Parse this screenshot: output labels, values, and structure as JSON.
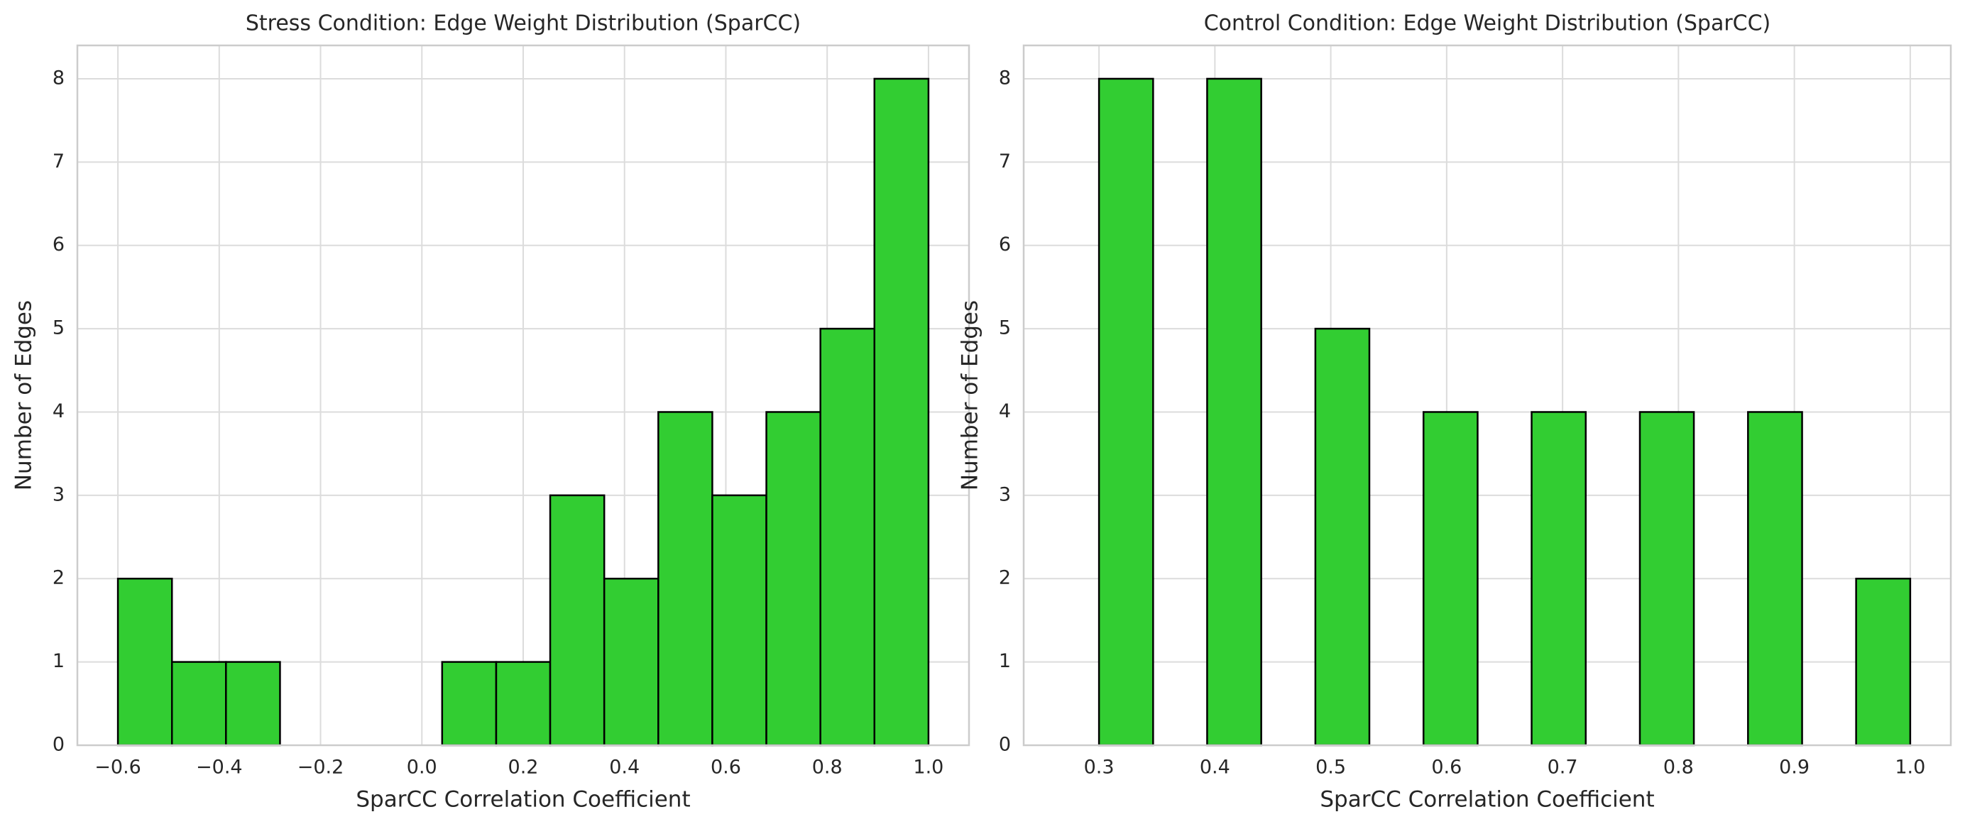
{
  "chart_data": [
    {
      "type": "histogram",
      "title": "Stress Condition: Edge Weight Distribution (SparCC)",
      "x_label": "SparCC Correlation Coefficient",
      "y_label": "Number of Edges",
      "bins": [
        -0.6,
        -0.4933,
        -0.3867,
        -0.28,
        -0.1733,
        -0.0667,
        0.04,
        0.1467,
        0.2533,
        0.36,
        0.4667,
        0.5733,
        0.68,
        0.7867,
        0.8933,
        1.0
      ],
      "values": [
        2,
        1,
        1,
        0,
        0,
        0,
        1,
        1,
        3,
        2,
        4,
        3,
        4,
        5,
        8
      ],
      "color": "#32cd32",
      "edgecolor": "#000000",
      "xlim": [
        -0.68,
        1.08
      ],
      "ylim": [
        0,
        8.4
      ],
      "xticks": [
        {
          "value": -0.6,
          "label": "−0.6"
        },
        {
          "value": -0.4,
          "label": "−0.4"
        },
        {
          "value": -0.2,
          "label": "−0.2"
        },
        {
          "value": 0,
          "label": "0.0"
        },
        0.2,
        0.4,
        0.6,
        0.8,
        {
          "value": 1,
          "label": "1.0"
        }
      ],
      "yticks": [
        0,
        1,
        2,
        3,
        4,
        5,
        6,
        7,
        8
      ],
      "grid": true
    },
    {
      "type": "histogram",
      "title": "Control Condition: Edge Weight Distribution (SparCC)",
      "x_label": "SparCC Correlation Coefficient",
      "y_label": "Number of Edges",
      "bins": [
        0.3,
        0.3467,
        0.3933,
        0.44,
        0.4867,
        0.5333,
        0.58,
        0.6267,
        0.6733,
        0.72,
        0.7667,
        0.8133,
        0.86,
        0.9067,
        0.9533,
        1.0
      ],
      "values": [
        8,
        0,
        8,
        0,
        5,
        0,
        4,
        0,
        4,
        0,
        4,
        0,
        4,
        0,
        2
      ],
      "color": "#32cd32",
      "edgecolor": "#000000",
      "xlim": [
        0.235,
        1.035
      ],
      "ylim": [
        0,
        8.4
      ],
      "xticks": [
        0.3,
        0.4,
        0.5,
        0.6,
        0.7,
        0.8,
        0.9,
        {
          "value": 1,
          "label": "1.0"
        }
      ],
      "yticks": [
        0,
        1,
        2,
        3,
        4,
        5,
        6,
        7,
        8
      ],
      "grid": true
    }
  ]
}
